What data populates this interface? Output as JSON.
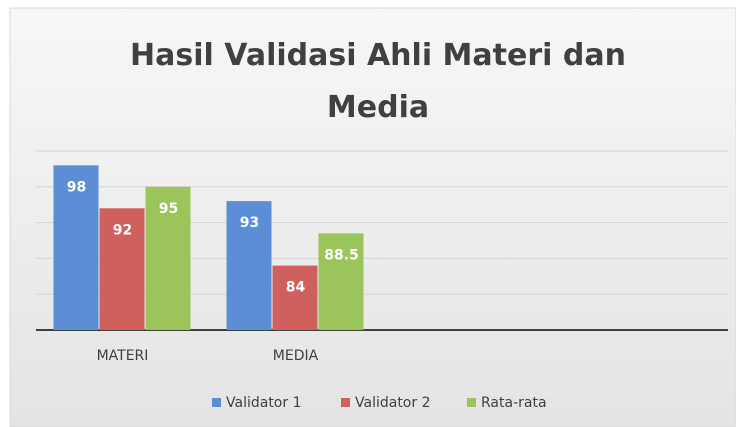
{
  "chart_data": {
    "type": "bar",
    "title": "Hasil Validasi Ahli Materi dan Media",
    "categories": [
      "MATERI",
      "MEDIA",
      null,
      null
    ],
    "series": [
      {
        "name": "Validator 1",
        "color": "#5b8ed5",
        "values": [
          98,
          93,
          null,
          null
        ]
      },
      {
        "name": "Validator 2",
        "color": "#d0605e",
        "values": [
          92,
          84,
          null,
          null
        ]
      },
      {
        "name": "Rata-rata",
        "color": "#9bc45a",
        "values": [
          95,
          88.5,
          null,
          null
        ]
      }
    ],
    "ylim": [
      75,
      100
    ],
    "yticks": [
      75,
      80,
      85,
      90,
      95,
      100
    ],
    "grid": true,
    "legend": "bottom"
  }
}
